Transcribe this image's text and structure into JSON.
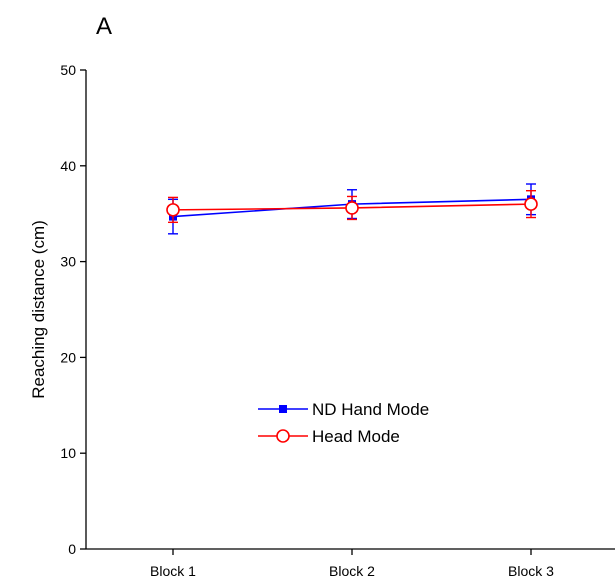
{
  "panel_label": "A",
  "chart_data": {
    "type": "line",
    "title": "",
    "xlabel": "",
    "ylabel": "Reaching distance (cm)",
    "categories": [
      "Block 1",
      "Block 2",
      "Block 3"
    ],
    "ylim": [
      0,
      50
    ],
    "yticks": [
      0,
      10,
      20,
      30,
      40,
      50
    ],
    "grid": false,
    "legend_position": "center",
    "series": [
      {
        "name": "ND Hand Mode",
        "color": "#0000ff",
        "marker": "filled-square",
        "values": [
          34.7,
          36.0,
          36.5
        ],
        "errors": [
          1.8,
          1.5,
          1.6
        ]
      },
      {
        "name": "Head Mode",
        "color": "#ff0000",
        "marker": "open-circle",
        "values": [
          35.4,
          35.6,
          36.0
        ],
        "errors": [
          1.3,
          1.2,
          1.4
        ]
      }
    ]
  }
}
